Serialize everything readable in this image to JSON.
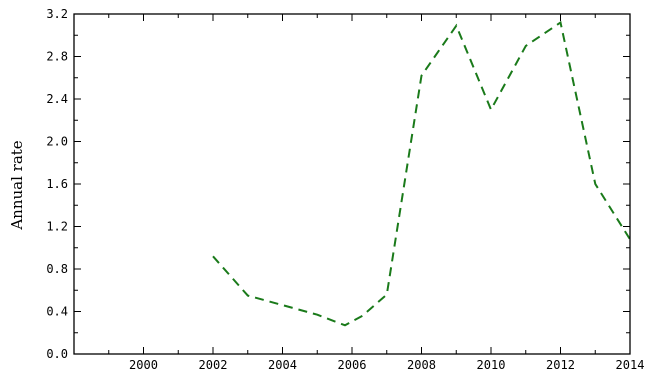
{
  "chart_data": {
    "type": "line",
    "xlabel": "",
    "ylabel": "Annual rate",
    "xlim": [
      1998,
      2014
    ],
    "ylim": [
      0.0,
      3.2
    ],
    "x_ticks": [
      2000,
      2002,
      2004,
      2006,
      2008,
      2010,
      2012,
      2014
    ],
    "x_tick_labels": [
      "2000",
      "2002",
      "2004",
      "2006",
      "2008",
      "2010",
      "2012",
      "2014"
    ],
    "y_ticks": [
      0.0,
      0.4,
      0.8,
      1.2,
      1.6,
      2.0,
      2.4,
      2.8,
      3.2
    ],
    "y_tick_labels": [
      "0.0",
      "0.4",
      "0.8",
      "1.2",
      "1.6",
      "2.0",
      "2.4",
      "2.8",
      "3.2"
    ],
    "grid": false,
    "series": [
      {
        "color": "#1a7a1a",
        "line_style": "dashed",
        "x": [
          2002,
          2003,
          2004,
          2005,
          2005.8,
          2006.3,
          2007,
          2008,
          2009,
          2010,
          2011,
          2012,
          2013,
          2014
        ],
        "y": [
          0.92,
          0.55,
          0.46,
          0.37,
          0.27,
          0.36,
          0.56,
          2.62,
          3.09,
          2.3,
          2.9,
          3.12,
          1.6,
          1.08
        ]
      }
    ]
  }
}
